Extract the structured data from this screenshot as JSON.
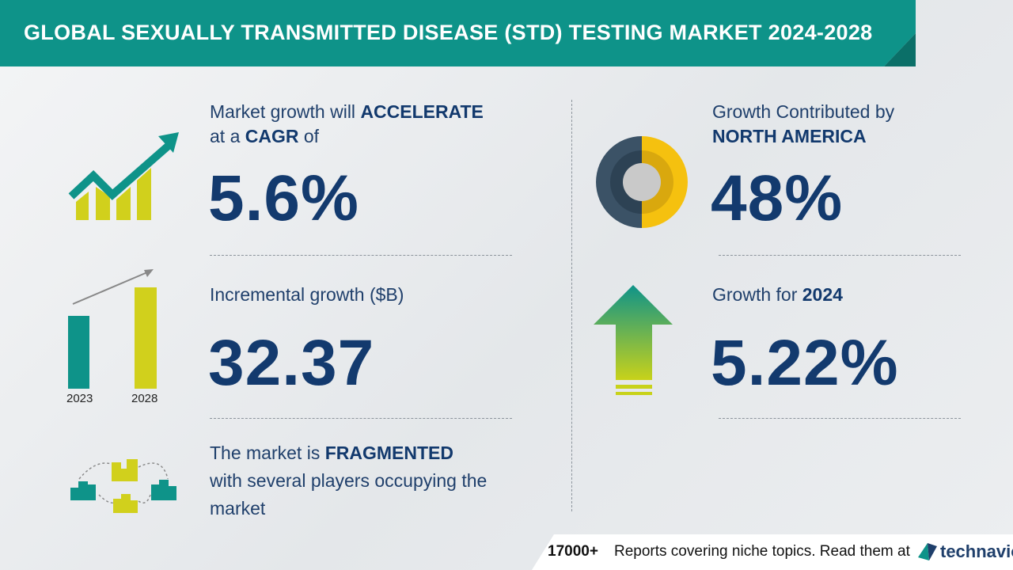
{
  "header": {
    "title": "GLOBAL SEXUALLY TRANSMITTED DISEASE (STD) TESTING MARKET 2024-2028"
  },
  "cagr": {
    "line1_pre": "Market growth will ",
    "line1_strong": "ACCELERATE",
    "line2_pre": "at a ",
    "line2_strong": "CAGR",
    "line2_post": " of",
    "value": "5.6%"
  },
  "incremental": {
    "label": "Incremental growth ($B)",
    "value": "32.37",
    "bar_labels": [
      "2023",
      "2028"
    ]
  },
  "fragmented": {
    "line1_pre": "The market is ",
    "line1_strong": "FRAGMENTED",
    "line2": "with several players occupying the",
    "line3": "market"
  },
  "region": {
    "line1": "Growth Contributed by",
    "line2": "NORTH AMERICA",
    "value": "48%"
  },
  "growth2024": {
    "label_pre": "Growth for ",
    "label_strong": "2024",
    "value": "5.22%"
  },
  "footer": {
    "count": "17000+",
    "text": "Reports covering niche topics. Read them at",
    "brand": "technavio"
  },
  "colors": {
    "teal": "#0e9389",
    "yellow": "#d1d01c",
    "navy": "#133a6e",
    "gold": "#f5c10f",
    "slate": "#3b5266"
  }
}
